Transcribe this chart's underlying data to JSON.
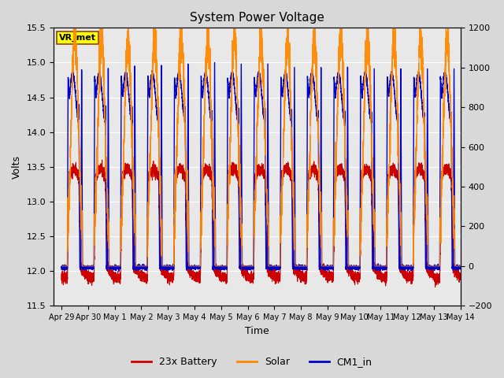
{
  "title": "System Power Voltage",
  "xlabel": "Time",
  "ylabel": "Volts",
  "ylim_left": [
    11.5,
    15.5
  ],
  "ylim_right": [
    -200,
    1200
  ],
  "yticks_left": [
    11.5,
    12.0,
    12.5,
    13.0,
    13.5,
    14.0,
    14.5,
    15.0,
    15.5
  ],
  "yticks_right": [
    -200,
    0,
    200,
    400,
    600,
    800,
    1000,
    1200
  ],
  "figure_bg": "#d8d8d8",
  "plot_bg": "#e8e8e8",
  "legend_entries": [
    "23x Battery",
    "Solar",
    "CM1_in"
  ],
  "legend_colors": [
    "#cc0000",
    "#ff8800",
    "#0000cc"
  ],
  "annotation_text": "VR_met",
  "annotation_box_facecolor": "#ffff00",
  "annotation_box_edgecolor": "#8B4513",
  "day_labels": [
    "Apr 29",
    "Apr 30",
    "May 1",
    "May 2",
    "May 3",
    "May 4",
    "May 5",
    "May 6",
    "May 7",
    "May 8",
    "May 9",
    "May 10",
    "May 11",
    "May 12",
    "May 13",
    "May 14"
  ],
  "num_days": 15
}
